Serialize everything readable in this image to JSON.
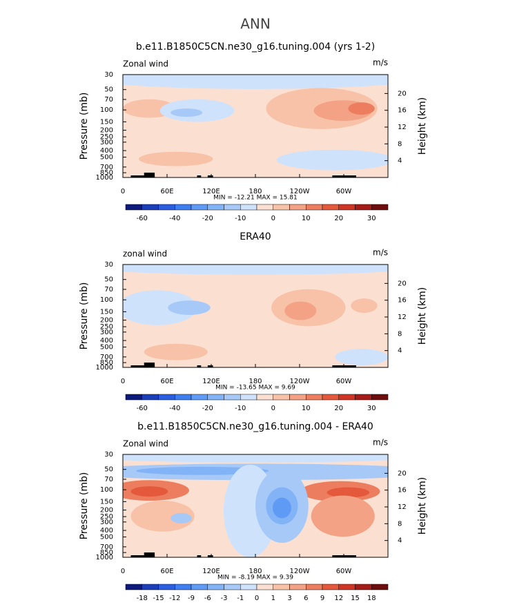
{
  "title": "ANN",
  "chart_data": [
    {
      "type": "contour",
      "title": "b.e11.B1850C5CN.ne30_g16.tuning.004 (yrs 1-2)",
      "left_label": "Zonal wind",
      "right_label": "m/s",
      "ylabel": "Pressure (mb)",
      "y2label": "Height (km)",
      "ylog": true,
      "ylim": [
        1000,
        30
      ],
      "yticks": [
        30,
        50,
        70,
        100,
        150,
        200,
        250,
        300,
        400,
        500,
        700,
        850,
        1000
      ],
      "y2lim": [
        0,
        24.5
      ],
      "y2ticks": [
        4,
        8,
        12,
        16,
        20
      ],
      "xlim": [
        0,
        360
      ],
      "xticks": [
        0,
        {
          "value": 60,
          "label": "60E"
        },
        {
          "value": 120,
          "label": "120E"
        },
        180,
        {
          "value": 240,
          "label": "120W"
        },
        {
          "value": 300,
          "label": "60W"
        }
      ],
      "stats": "MIN = -12.21   MAX =  15.81",
      "colorbar": {
        "colors": [
          "#0c1a7a",
          "#1a3fb8",
          "#2a5de0",
          "#3f7ef0",
          "#5f9af5",
          "#82b3f7",
          "#a6c9f8",
          "#cfe2fb",
          "#fbe0d2",
          "#f8c2a9",
          "#f3a285",
          "#ec7d5e",
          "#e4583b",
          "#cf3524",
          "#a51b17",
          "#6e0d0d"
        ],
        "ticks": [
          -60,
          -40,
          -20,
          -10,
          0,
          10,
          20,
          30
        ]
      }
    },
    {
      "type": "contour",
      "title": "ERA40",
      "left_label": "zonal wind",
      "right_label": "m/s",
      "ylabel": "Pressure (mb)",
      "y2label": "Height (km)",
      "ylog": true,
      "ylim": [
        1000,
        30
      ],
      "yticks": [
        30,
        50,
        70,
        100,
        150,
        200,
        250,
        300,
        400,
        500,
        700,
        850,
        1000
      ],
      "y2lim": [
        0,
        24.5
      ],
      "y2ticks": [
        4,
        8,
        12,
        16,
        20
      ],
      "xlim": [
        0,
        360
      ],
      "xticks": [
        0,
        {
          "value": 60,
          "label": "60E"
        },
        {
          "value": 120,
          "label": "120E"
        },
        180,
        {
          "value": 240,
          "label": "120W"
        },
        {
          "value": 300,
          "label": "60W"
        }
      ],
      "stats": "MIN = -13.65   MAX =   9.69",
      "colorbar": {
        "colors": [
          "#0c1a7a",
          "#1a3fb8",
          "#2a5de0",
          "#3f7ef0",
          "#5f9af5",
          "#82b3f7",
          "#a6c9f8",
          "#cfe2fb",
          "#fbe0d2",
          "#f8c2a9",
          "#f3a285",
          "#ec7d5e",
          "#e4583b",
          "#cf3524",
          "#a51b17",
          "#6e0d0d"
        ],
        "ticks": [
          -60,
          -40,
          -20,
          -10,
          0,
          10,
          20,
          30
        ]
      }
    },
    {
      "type": "contour",
      "title": "b.e11.B1850C5CN.ne30_g16.tuning.004 - ERA40",
      "left_label": "Zonal wind",
      "right_label": "m/s",
      "ylabel": "Pressure (mb)",
      "y2label": "Height (km)",
      "ylog": true,
      "ylim": [
        1000,
        30
      ],
      "yticks": [
        30,
        50,
        70,
        100,
        150,
        200,
        250,
        300,
        400,
        500,
        700,
        850,
        1000
      ],
      "y2lim": [
        0,
        24.5
      ],
      "y2ticks": [
        4,
        8,
        12,
        16,
        20
      ],
      "xlim": [
        0,
        360
      ],
      "xticks": [
        0,
        {
          "value": 60,
          "label": "60E"
        },
        {
          "value": 120,
          "label": "120E"
        },
        180,
        {
          "value": 240,
          "label": "120W"
        },
        {
          "value": 300,
          "label": "60W"
        }
      ],
      "stats": "MIN =  -8.19   MAX =   9.39",
      "colorbar": {
        "colors": [
          "#0c1a7a",
          "#1a3fb8",
          "#2a5de0",
          "#3f7ef0",
          "#5f9af5",
          "#82b3f7",
          "#a6c9f8",
          "#cfe2fb",
          "#fbe0d2",
          "#f8c2a9",
          "#f3a285",
          "#ec7d5e",
          "#e4583b",
          "#cf3524",
          "#a51b17",
          "#6e0d0d"
        ],
        "ticks": [
          -18,
          -15,
          -12,
          -9,
          -6,
          -3,
          -1,
          0,
          1,
          3,
          6,
          9,
          12,
          15,
          18
        ]
      }
    }
  ]
}
